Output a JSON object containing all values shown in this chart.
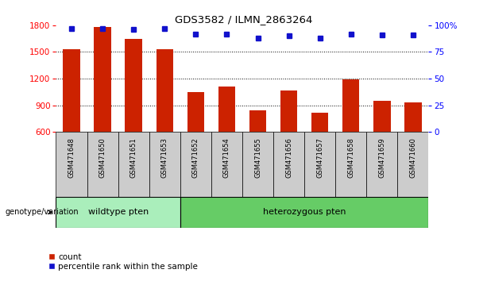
{
  "title": "GDS3582 / ILMN_2863264",
  "categories": [
    "GSM471648",
    "GSM471650",
    "GSM471651",
    "GSM471653",
    "GSM471652",
    "GSM471654",
    "GSM471655",
    "GSM471656",
    "GSM471657",
    "GSM471658",
    "GSM471659",
    "GSM471660"
  ],
  "bar_values": [
    1530,
    1785,
    1650,
    1535,
    1050,
    1110,
    840,
    1070,
    820,
    1190,
    950,
    930
  ],
  "percentile_values": [
    97,
    97,
    96,
    97,
    92,
    92,
    88,
    90,
    88,
    92,
    91,
    91
  ],
  "bar_color": "#cc2200",
  "percentile_color": "#1111cc",
  "ylim_left": [
    600,
    1800
  ],
  "ylim_right": [
    0,
    100
  ],
  "yticks_left": [
    600,
    900,
    1200,
    1500,
    1800
  ],
  "yticks_right": [
    0,
    25,
    50,
    75,
    100
  ],
  "grid_lines": [
    900,
    1200,
    1500
  ],
  "wt_count": 4,
  "het_count": 8,
  "wildtype_label": "wildtype pten",
  "heterozygous_label": "heterozygous pten",
  "genotype_label": "genotype/variation",
  "legend_count": "count",
  "legend_percentile": "percentile rank within the sample",
  "wildtype_color": "#aaeebb",
  "heterozygous_color": "#66cc66",
  "group_bg_color": "#cccccc",
  "bar_width": 0.55
}
